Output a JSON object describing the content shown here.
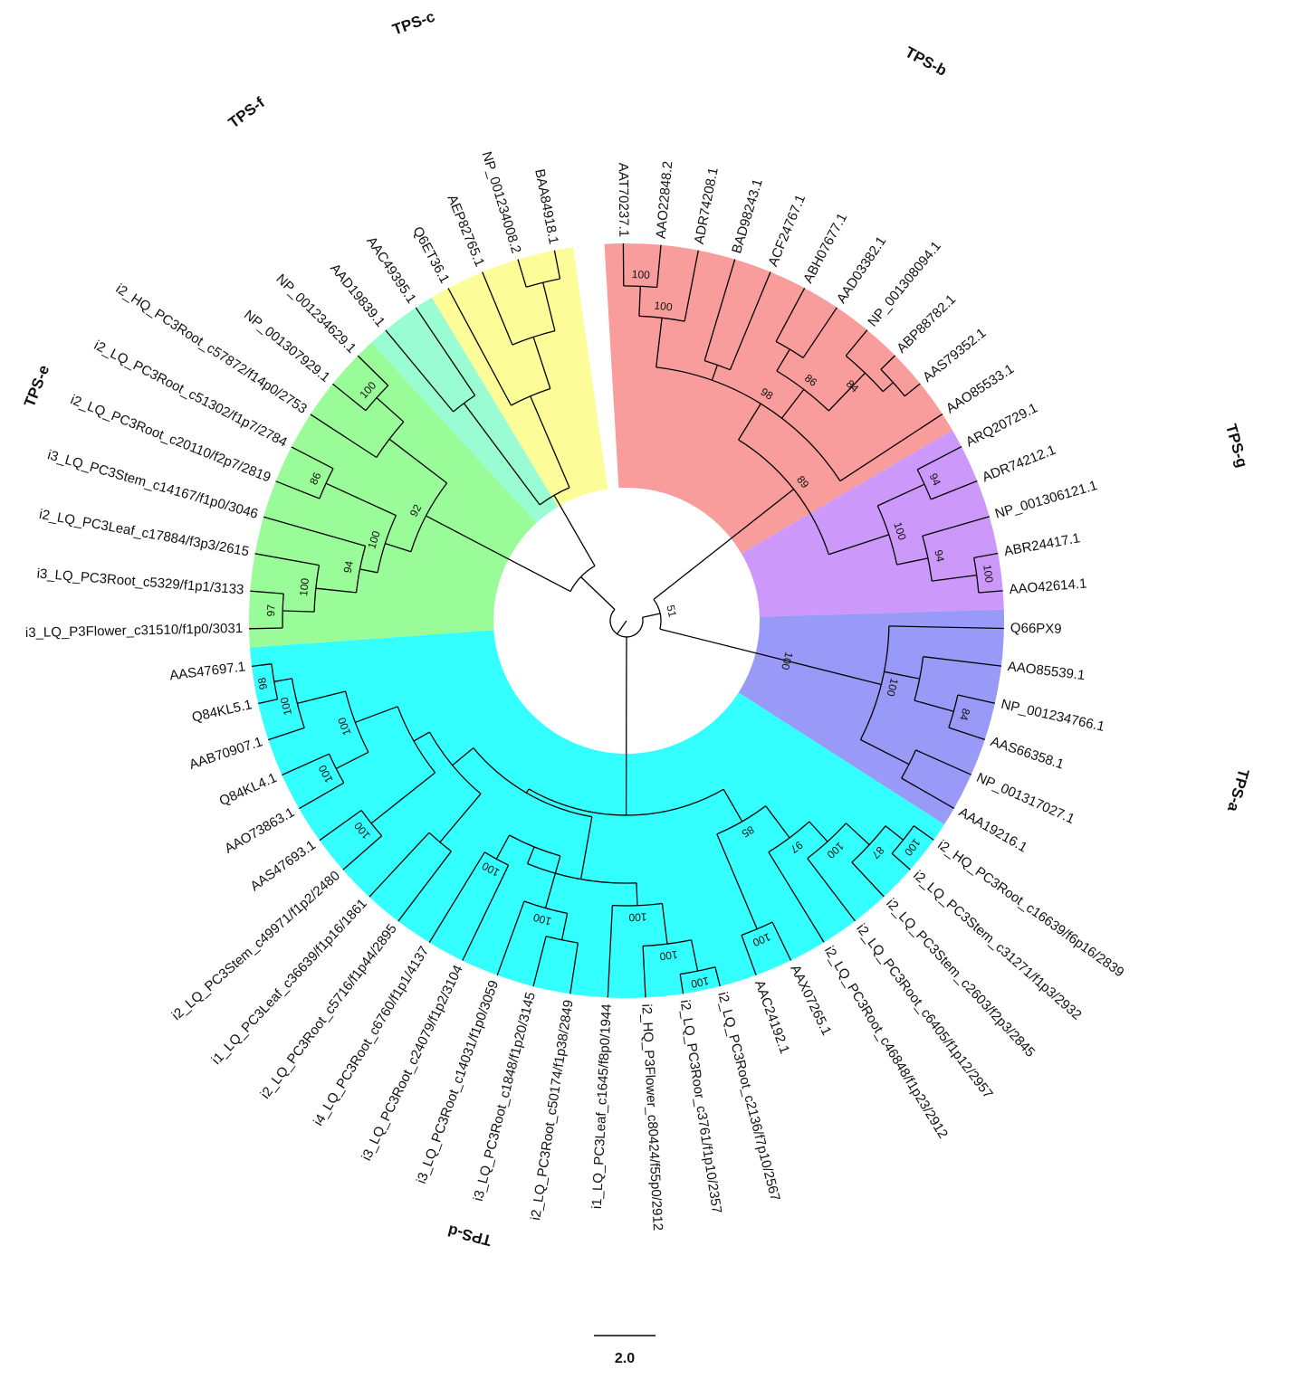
{
  "leaves": [
    "AAT70237.1",
    "AAO22848.2",
    "ADR74208.1",
    "BAD98243.1",
    "ACF24767.1",
    "ABH07677.1",
    "AAD03382.1",
    "NP_001308094.1",
    "ABP88782.1",
    "AAS79352.1",
    "AAO85533.1",
    "ARQ20729.1",
    "ADR74212.1",
    "NP_001306121.1",
    "ABR24417.1",
    "AAO42614.1",
    "Q66PX9",
    "AAO85539.1",
    "NP_001234766.1",
    "AAS66358.1",
    "NP_001317027.1",
    "AAA19216.1",
    "i2_HQ_PC3Root_c16639/f6p16/2839",
    "i2_LQ_PC3Stem_c31271/f1p3/2932",
    "i2_LQ_PC3Stem_c2603/f2p3/2845",
    "i2_LQ_PC3Root_c6405/f1p12/2957",
    "i2_LQ_PC3Root_c46848/f1p23/2912",
    "AAX07265.1",
    "AAC24192.1",
    "i2_LQ_PC3Root_c2136/f7p10/2567",
    "i2_LQ_PC3Roor_c3761/f1p10/2357",
    "i2_HQ_P3Flower_c80424/f55p0/2912",
    "i1_LQ_PC3Leaf_c1645/f8p0/1944",
    "i2_LQ_PC3Root_c50174/f1p38/2849",
    "i3_LQ_PC3Root_c1848/f1p20/3145",
    "i3_LQ_PC3Root_c14031/f1p0/3059",
    "i3_LQ_PC3Root_c24079/f1p2/3104",
    "i4_LQ_PC3Root_c6760/f1p1/4137",
    "i2_LQ_PC3Root_c5716/f1p44/2895",
    "i1_LQ_PC3Leaf_c36639/f1p16/1861",
    "i2_LQ_PC3Stem_c49971/f1p2/2480",
    "AAS47693.1",
    "AAO73863.1",
    "Q84KL4.1",
    "AAB70907.1",
    "Q84KL5.1",
    "AAS47697.1",
    "i3_LQ_P3Flower_c31510/f1p0/3031",
    "i3_LQ_PC3Root_c5329/f1p1/3133",
    "i2_LQ_PC3Leaf_c17884/f3p3/2615",
    "i3_LQ_PC3Stem_c14167/f1p0/3046",
    "i2_LQ_PC3Root_c20110/f2p7/2819",
    "i2_LQ_PC3Root_c51302/f1p7/2784",
    "i2_HQ_PC3Root_c57872/f14p0/2753",
    "NP_001307929.1",
    "NP_001234629.1",
    "AAD19839.1",
    "AAC49395.1",
    "Q6ET36.1",
    "AEP82765.1",
    "NP_001234008.2",
    "BAA84918.1"
  ],
  "clades": [
    {
      "name": "TPS-b",
      "color": "#f99c9c",
      "from": 0,
      "to": 10
    },
    {
      "name": "TPS-g",
      "color": "#cc99fa",
      "from": 11,
      "to": 15
    },
    {
      "name": "TPS-a",
      "color": "#9999f7",
      "from": 16,
      "to": 21
    },
    {
      "name": "TPS-d",
      "color": "#33ffff",
      "from": 22,
      "to": 46
    },
    {
      "name": "TPS-e",
      "color": "#99fc99",
      "from": 47,
      "to": 55
    },
    {
      "name": "TPS-f",
      "color": "#99fcd2",
      "from": 56,
      "to": 57
    },
    {
      "name": "TPS-c",
      "color": "#fcfc99",
      "from": 58,
      "to": 61
    }
  ],
  "bootstrap": [
    "100",
    "100",
    "98",
    "86",
    "84",
    "89",
    "100",
    "94",
    "94",
    "100",
    "100",
    "100",
    "84",
    "51",
    "85",
    "97",
    "100",
    "87",
    "100",
    "100",
    "100",
    "100",
    "100",
    "100",
    "100",
    "100",
    "100",
    "100",
    "98",
    "100",
    "97",
    "100",
    "94",
    "92",
    "86",
    "100",
    "100"
  ],
  "scale_bar": {
    "label": "2.0",
    "value": 2.0
  }
}
